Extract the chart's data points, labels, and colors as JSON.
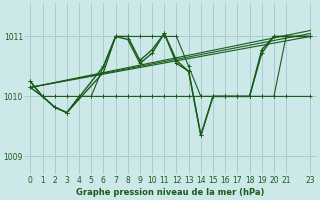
{
  "title": "Graphe pression niveau de la mer (hPa)",
  "bg_color": "#cce8e8",
  "grid_color": "#aacccc",
  "line_color": "#1a5c1a",
  "xlim": [
    -0.5,
    23.5
  ],
  "ylim": [
    1008.7,
    1011.55
  ],
  "yticks": [
    1009,
    1010,
    1011
  ],
  "xticks": [
    0,
    1,
    2,
    3,
    4,
    5,
    6,
    7,
    8,
    9,
    10,
    11,
    12,
    13,
    14,
    15,
    16,
    17,
    18,
    19,
    20,
    21,
    23
  ],
  "series": [
    {
      "x": [
        0,
        1,
        2,
        3,
        4,
        5,
        6,
        7,
        8,
        9,
        10,
        11,
        12,
        13,
        14,
        15,
        16,
        17,
        18,
        19,
        20,
        21,
        23
      ],
      "y": [
        1010.15,
        1010.0,
        1010.0,
        1010.0,
        1010.0,
        1010.0,
        1010.0,
        1010.0,
        1010.0,
        1010.0,
        1010.0,
        1010.0,
        1010.0,
        1010.0,
        1010.0,
        1010.0,
        1010.0,
        1010.0,
        1010.0,
        1010.0,
        1010.0,
        1010.0,
        1010.0
      ],
      "lw": 0.8
    },
    {
      "x": [
        0,
        1,
        2,
        3,
        4,
        5,
        6,
        7,
        8,
        9,
        10,
        11,
        12,
        13,
        14,
        15,
        16,
        17,
        18,
        19,
        20,
        21,
        23
      ],
      "y": [
        1010.15,
        1010.0,
        1009.82,
        1009.73,
        1010.0,
        1010.0,
        1010.5,
        1011.0,
        1011.0,
        1011.0,
        1011.0,
        1011.0,
        1011.0,
        1010.5,
        1010.0,
        1010.0,
        1010.0,
        1010.0,
        1010.0,
        1010.0,
        1010.0,
        1011.0,
        1011.0
      ],
      "lw": 0.8
    },
    {
      "x": [
        0,
        23
      ],
      "y": [
        1010.15,
        1011.0
      ],
      "lw": 0.8
    },
    {
      "x": [
        0,
        23
      ],
      "y": [
        1010.15,
        1011.05
      ],
      "lw": 0.8
    },
    {
      "x": [
        0,
        23
      ],
      "y": [
        1010.15,
        1011.1
      ],
      "lw": 0.8
    },
    {
      "x": [
        0,
        1,
        2,
        3,
        6,
        7,
        8,
        9,
        10,
        11,
        12,
        13,
        14,
        15,
        16,
        17,
        18,
        19,
        20,
        21,
        23
      ],
      "y": [
        1010.25,
        1010.0,
        1009.82,
        1009.73,
        1010.4,
        1011.0,
        1010.95,
        1010.55,
        1010.72,
        1011.05,
        1010.55,
        1010.42,
        1009.35,
        1010.0,
        1010.0,
        1010.0,
        1010.0,
        1010.72,
        1011.0,
        1011.0,
        1011.0
      ],
      "lw": 1.0
    },
    {
      "x": [
        0,
        1,
        2,
        3,
        6,
        7,
        8,
        9,
        10,
        11,
        12,
        13,
        14,
        15,
        16,
        17,
        18,
        19,
        20,
        21,
        23
      ],
      "y": [
        1010.25,
        1010.0,
        1009.82,
        1009.73,
        1010.5,
        1011.0,
        1011.0,
        1010.6,
        1010.78,
        1011.05,
        1010.6,
        1010.42,
        1009.35,
        1010.0,
        1010.0,
        1010.0,
        1010.0,
        1010.78,
        1011.0,
        1011.0,
        1011.0
      ],
      "lw": 1.0
    }
  ]
}
